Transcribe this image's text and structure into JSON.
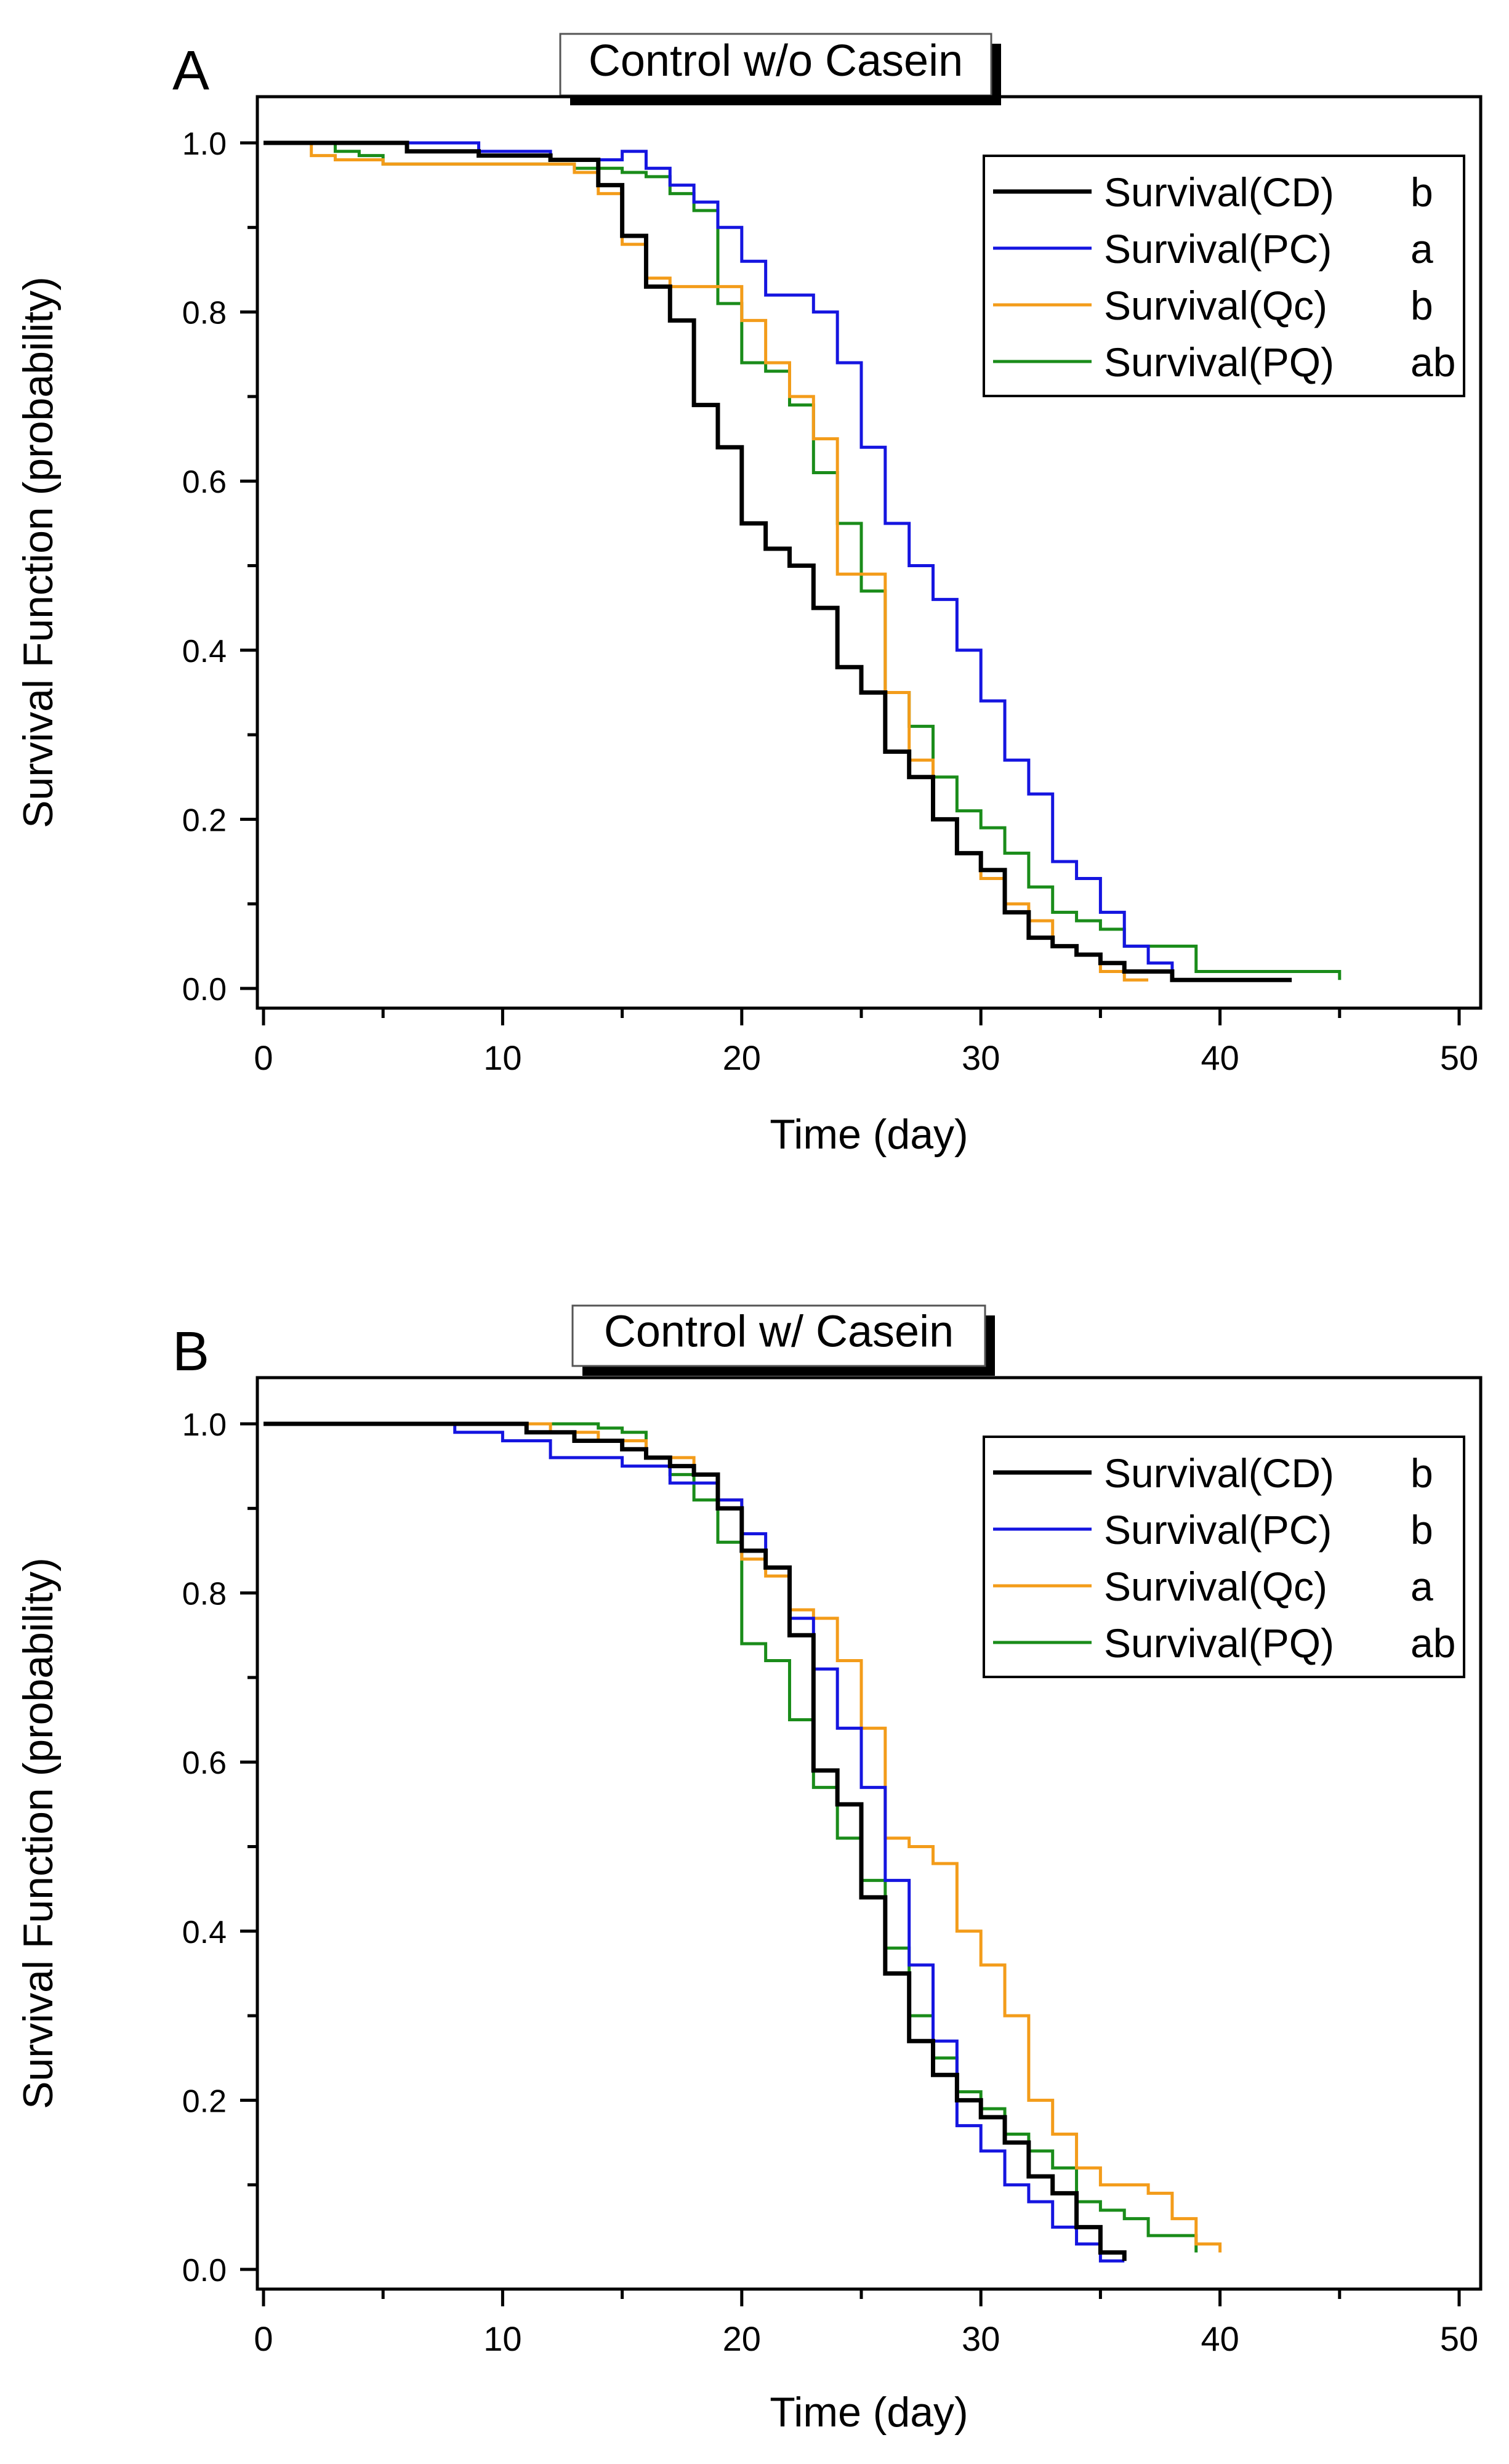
{
  "chart_data": [
    {
      "type": "line",
      "panel_label": "A",
      "title": "Control w/o Casein",
      "xlabel": "Time (day)",
      "ylabel": "Survival Function (probability)",
      "xlim": [
        0,
        50
      ],
      "ylim": [
        0,
        1
      ],
      "xticks": [
        "0",
        "10",
        "20",
        "30",
        "40",
        "50"
      ],
      "yticks": [
        "0.0",
        "0.2",
        "0.4",
        "0.6",
        "0.8",
        "1.0"
      ],
      "legend_position": "top-right",
      "series": [
        {
          "name": "Survival(CD)",
          "letter": "b",
          "color": "#000000",
          "x": [
            0,
            6,
            9,
            12,
            14,
            15,
            16,
            17,
            18,
            19,
            20,
            21,
            22,
            23,
            24,
            25,
            26,
            27,
            28,
            29,
            30,
            31,
            32,
            33,
            34,
            35,
            36,
            38,
            43
          ],
          "y": [
            1.0,
            0.99,
            0.985,
            0.98,
            0.95,
            0.89,
            0.83,
            0.79,
            0.69,
            0.64,
            0.55,
            0.52,
            0.5,
            0.45,
            0.38,
            0.35,
            0.28,
            0.25,
            0.2,
            0.16,
            0.14,
            0.09,
            0.06,
            0.05,
            0.04,
            0.03,
            0.02,
            0.01,
            0.01
          ]
        },
        {
          "name": "Survival(PC)",
          "letter": "a",
          "color": "#1515e0",
          "x": [
            0,
            9,
            12,
            15,
            16,
            17,
            18,
            19,
            20,
            21,
            22,
            23,
            24,
            25,
            26,
            27,
            28,
            29,
            30,
            31,
            32,
            33,
            34,
            35,
            36,
            37,
            38
          ],
          "y": [
            1.0,
            0.99,
            0.98,
            0.99,
            0.97,
            0.95,
            0.93,
            0.9,
            0.86,
            0.82,
            0.82,
            0.8,
            0.74,
            0.64,
            0.55,
            0.5,
            0.46,
            0.4,
            0.34,
            0.27,
            0.23,
            0.15,
            0.13,
            0.09,
            0.05,
            0.03,
            0.02
          ]
        },
        {
          "name": "Survival(Qc)",
          "letter": "b",
          "color": "#f39c1a",
          "x": [
            0,
            2,
            3,
            5,
            13,
            14,
            15,
            16,
            17,
            18,
            19,
            20,
            21,
            22,
            23,
            24,
            25,
            26,
            27,
            28,
            29,
            30,
            31,
            32,
            33,
            34,
            35,
            36,
            37
          ],
          "y": [
            1.0,
            0.985,
            0.98,
            0.975,
            0.965,
            0.94,
            0.88,
            0.84,
            0.83,
            0.83,
            0.83,
            0.79,
            0.74,
            0.7,
            0.65,
            0.49,
            0.49,
            0.35,
            0.27,
            0.2,
            0.16,
            0.13,
            0.1,
            0.08,
            0.05,
            0.04,
            0.02,
            0.01,
            0.01
          ]
        },
        {
          "name": "Survival(PQ)",
          "letter": "ab",
          "color": "#1a8c1a",
          "x": [
            0,
            3,
            4,
            5,
            13,
            15,
            16,
            17,
            18,
            19,
            20,
            21,
            22,
            23,
            24,
            25,
            26,
            27,
            28,
            29,
            30,
            31,
            32,
            33,
            34,
            35,
            36,
            39,
            45
          ],
          "y": [
            1.0,
            0.99,
            0.985,
            0.975,
            0.97,
            0.965,
            0.96,
            0.94,
            0.92,
            0.81,
            0.74,
            0.73,
            0.69,
            0.61,
            0.55,
            0.47,
            0.35,
            0.31,
            0.25,
            0.21,
            0.19,
            0.16,
            0.12,
            0.09,
            0.08,
            0.07,
            0.05,
            0.02,
            0.01
          ]
        }
      ]
    },
    {
      "type": "line",
      "panel_label": "B",
      "title": "Control w/ Casein",
      "xlabel": "Time (day)",
      "ylabel": "Survival Function (probability)",
      "xlim": [
        0,
        50
      ],
      "ylim": [
        0,
        1
      ],
      "xticks": [
        "0",
        "10",
        "20",
        "30",
        "40",
        "50"
      ],
      "yticks": [
        "0.0",
        "0.2",
        "0.4",
        "0.6",
        "0.8",
        "1.0"
      ],
      "legend_position": "top-right",
      "series": [
        {
          "name": "Survival(CD)",
          "letter": "b",
          "color": "#000000",
          "x": [
            0,
            11,
            13,
            15,
            16,
            17,
            18,
            19,
            20,
            21,
            22,
            23,
            24,
            25,
            26,
            27,
            28,
            29,
            30,
            31,
            32,
            33,
            34,
            35,
            36
          ],
          "y": [
            1.0,
            0.99,
            0.98,
            0.97,
            0.96,
            0.95,
            0.94,
            0.9,
            0.85,
            0.83,
            0.75,
            0.59,
            0.55,
            0.44,
            0.35,
            0.27,
            0.23,
            0.2,
            0.18,
            0.15,
            0.11,
            0.09,
            0.05,
            0.02,
            0.01
          ]
        },
        {
          "name": "Survival(PC)",
          "letter": "b",
          "color": "#1515e0",
          "x": [
            0,
            8,
            10,
            12,
            15,
            17,
            19,
            20,
            21,
            22,
            23,
            24,
            25,
            26,
            27,
            28,
            29,
            30,
            31,
            32,
            33,
            34,
            35,
            36
          ],
          "y": [
            1.0,
            0.99,
            0.98,
            0.96,
            0.95,
            0.93,
            0.91,
            0.87,
            0.83,
            0.77,
            0.71,
            0.64,
            0.57,
            0.46,
            0.36,
            0.27,
            0.17,
            0.14,
            0.1,
            0.08,
            0.05,
            0.03,
            0.01,
            0.01
          ]
        },
        {
          "name": "Survival(Qc)",
          "letter": "a",
          "color": "#f39c1a",
          "x": [
            0,
            12,
            14,
            16,
            18,
            19,
            20,
            21,
            22,
            23,
            24,
            25,
            26,
            27,
            28,
            29,
            30,
            31,
            32,
            33,
            34,
            35,
            36,
            37,
            38,
            39,
            40
          ],
          "y": [
            1.0,
            0.99,
            0.98,
            0.96,
            0.94,
            0.91,
            0.84,
            0.82,
            0.78,
            0.77,
            0.72,
            0.64,
            0.51,
            0.5,
            0.48,
            0.4,
            0.36,
            0.3,
            0.2,
            0.16,
            0.12,
            0.1,
            0.1,
            0.09,
            0.06,
            0.03,
            0.02
          ]
        },
        {
          "name": "Survival(PQ)",
          "letter": "ab",
          "color": "#1a8c1a",
          "x": [
            0,
            14,
            15,
            16,
            17,
            18,
            19,
            20,
            21,
            22,
            23,
            24,
            25,
            26,
            27,
            28,
            29,
            30,
            31,
            32,
            33,
            34,
            35,
            36,
            37,
            39
          ],
          "y": [
            1.0,
            0.995,
            0.99,
            0.96,
            0.94,
            0.91,
            0.86,
            0.74,
            0.72,
            0.65,
            0.57,
            0.51,
            0.46,
            0.38,
            0.3,
            0.25,
            0.21,
            0.19,
            0.16,
            0.14,
            0.12,
            0.08,
            0.07,
            0.06,
            0.04,
            0.02
          ]
        }
      ]
    }
  ]
}
